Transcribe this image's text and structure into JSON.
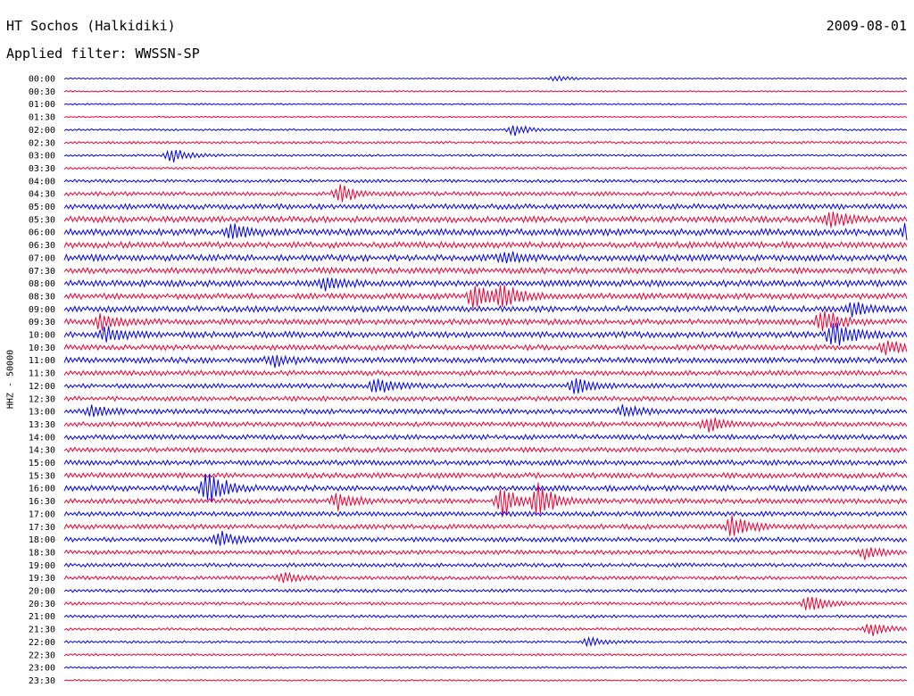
{
  "header": {
    "station": "HT Sochos (Halkidiki)",
    "date": "2009-08-01",
    "filter": "Applied filter: WWSSN-SP"
  },
  "channel_label": "HHZ - 50000",
  "colors": {
    "even_trace": "#0000ee",
    "odd_trace": "#ee0033",
    "background": "#ffffff"
  },
  "chart_data": {
    "type": "line",
    "title": "HT Sochos (Halkidiki)",
    "subtitle": "Applied filter: WWSSN-SP",
    "ylabel": "HHZ - 50000",
    "xlabel": "",
    "series_labels": [
      "00:00",
      "00:30",
      "01:00",
      "01:30",
      "02:00",
      "02:30",
      "03:00",
      "03:30",
      "04:00",
      "04:30",
      "05:00",
      "05:30",
      "06:00",
      "06:30",
      "07:00",
      "07:30",
      "08:00",
      "08:30",
      "09:00",
      "09:30",
      "10:00",
      "10:30",
      "11:00",
      "11:30",
      "12:00",
      "12:30",
      "13:00",
      "13:30",
      "14:00",
      "14:30",
      "15:00",
      "15:30",
      "16:00",
      "16:30",
      "17:00",
      "17:30",
      "18:00",
      "18:30",
      "19:00",
      "19:30",
      "20:00",
      "20:30",
      "21:00",
      "21:30",
      "22:00",
      "22:30",
      "23:00",
      "23:30"
    ],
    "x_range_minutes": [
      0,
      30
    ],
    "trace_colors": [
      "blue",
      "red"
    ],
    "noise_level": [
      0.5,
      0.6,
      0.6,
      0.6,
      0.8,
      1.0,
      0.9,
      1.0,
      1.3,
      1.7,
      2.2,
      2.5,
      2.7,
      2.5,
      2.6,
      2.5,
      2.6,
      2.4,
      2.4,
      2.3,
      2.5,
      2.2,
      2.4,
      2.1,
      1.9,
      1.9,
      2.1,
      2.0,
      2.0,
      2.0,
      2.1,
      2.2,
      2.3,
      2.1,
      2.0,
      2.0,
      1.9,
      1.8,
      1.6,
      1.5,
      1.4,
      1.3,
      1.2,
      1.1,
      1.0,
      0.9,
      0.8,
      0.7
    ],
    "events": [
      {
        "row": 0,
        "minute": 17.5,
        "amp": 3
      },
      {
        "row": 4,
        "minute": 16.0,
        "amp": 6
      },
      {
        "row": 6,
        "minute": 3.8,
        "amp": 8
      },
      {
        "row": 9,
        "minute": 9.8,
        "amp": 10
      },
      {
        "row": 11,
        "minute": 27.3,
        "amp": 10
      },
      {
        "row": 12,
        "minute": 6.0,
        "amp": 8
      },
      {
        "row": 12,
        "minute": 30.0,
        "amp": 9
      },
      {
        "row": 14,
        "minute": 15.7,
        "amp": 6
      },
      {
        "row": 14,
        "minute": 31.0,
        "amp": 8
      },
      {
        "row": 16,
        "minute": 9.3,
        "amp": 8
      },
      {
        "row": 17,
        "minute": 14.6,
        "amp": 14
      },
      {
        "row": 17,
        "minute": 15.6,
        "amp": 12
      },
      {
        "row": 18,
        "minute": 28.1,
        "amp": 8
      },
      {
        "row": 19,
        "minute": 1.3,
        "amp": 8
      },
      {
        "row": 19,
        "minute": 27.0,
        "amp": 14
      },
      {
        "row": 20,
        "minute": 1.5,
        "amp": 9
      },
      {
        "row": 20,
        "minute": 27.4,
        "amp": 16
      },
      {
        "row": 21,
        "minute": 29.3,
        "amp": 8
      },
      {
        "row": 22,
        "minute": 7.4,
        "amp": 6
      },
      {
        "row": 24,
        "minute": 11.1,
        "amp": 9
      },
      {
        "row": 24,
        "minute": 18.2,
        "amp": 8
      },
      {
        "row": 26,
        "minute": 1.0,
        "amp": 6
      },
      {
        "row": 26,
        "minute": 19.9,
        "amp": 6
      },
      {
        "row": 27,
        "minute": 22.9,
        "amp": 8
      },
      {
        "row": 28,
        "minute": 30.9,
        "amp": 6
      },
      {
        "row": 32,
        "minute": 5.1,
        "amp": 20
      },
      {
        "row": 33,
        "minute": 9.7,
        "amp": 9
      },
      {
        "row": 33,
        "minute": 15.6,
        "amp": 16
      },
      {
        "row": 33,
        "minute": 16.9,
        "amp": 18
      },
      {
        "row": 35,
        "minute": 23.8,
        "amp": 12
      },
      {
        "row": 36,
        "minute": 5.5,
        "amp": 8
      },
      {
        "row": 37,
        "minute": 28.5,
        "amp": 6
      },
      {
        "row": 39,
        "minute": 7.8,
        "amp": 6
      },
      {
        "row": 40,
        "minute": 30.9,
        "amp": 6
      },
      {
        "row": 41,
        "minute": 26.5,
        "amp": 10
      },
      {
        "row": 43,
        "minute": 28.7,
        "amp": 8
      },
      {
        "row": 44,
        "minute": 18.7,
        "amp": 5
      }
    ]
  }
}
